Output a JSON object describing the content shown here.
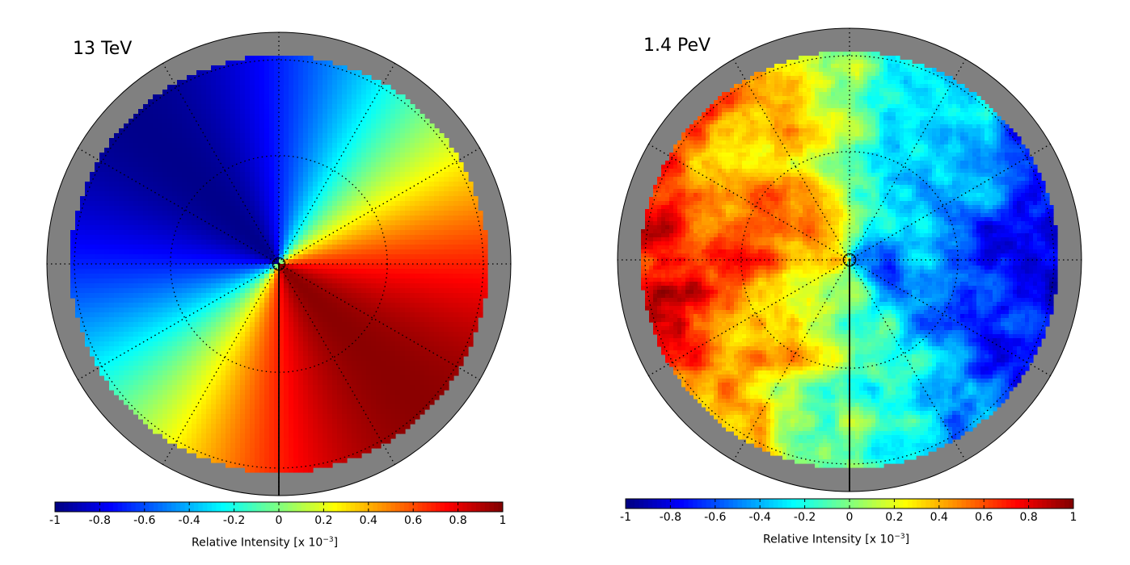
{
  "chart_data": [
    {
      "type": "heatmap",
      "projection": "polar-sky-map",
      "annotation": "13 TeV",
      "colormap": "jet",
      "colorbar": {
        "ticks": [
          "-1",
          "-0.8",
          "-0.6",
          "-0.4",
          "-0.2",
          "0",
          "0.2",
          "0.4",
          "0.6",
          "0.8",
          "1"
        ],
        "range": [
          -1,
          1
        ],
        "label_prefix": "Relative Intensity [x 10",
        "label_exponent": "−3",
        "label_suffix": "]"
      },
      "dipole": {
        "amplitude": 0.85,
        "phase_deg": 225,
        "pattern": "smooth dipole, deficit toward upper-left, excess toward right"
      },
      "grid": true
    },
    {
      "type": "heatmap",
      "projection": "polar-sky-map",
      "annotation": "1.4 PeV",
      "colormap": "jet",
      "colorbar": {
        "ticks": [
          "-1",
          "-0.8",
          "-0.6",
          "-0.4",
          "-0.2",
          "0",
          "0.2",
          "0.4",
          "0.6",
          "0.8",
          "1"
        ],
        "range": [
          -1,
          1
        ],
        "label_prefix": "Relative Intensity [x 10",
        "label_exponent": "−3",
        "label_suffix": "]"
      },
      "dipole": {
        "amplitude": 0.6,
        "phase_deg": 0,
        "pattern": "noisy dipole, deficit toward right, excess toward left"
      },
      "grid": true
    }
  ]
}
